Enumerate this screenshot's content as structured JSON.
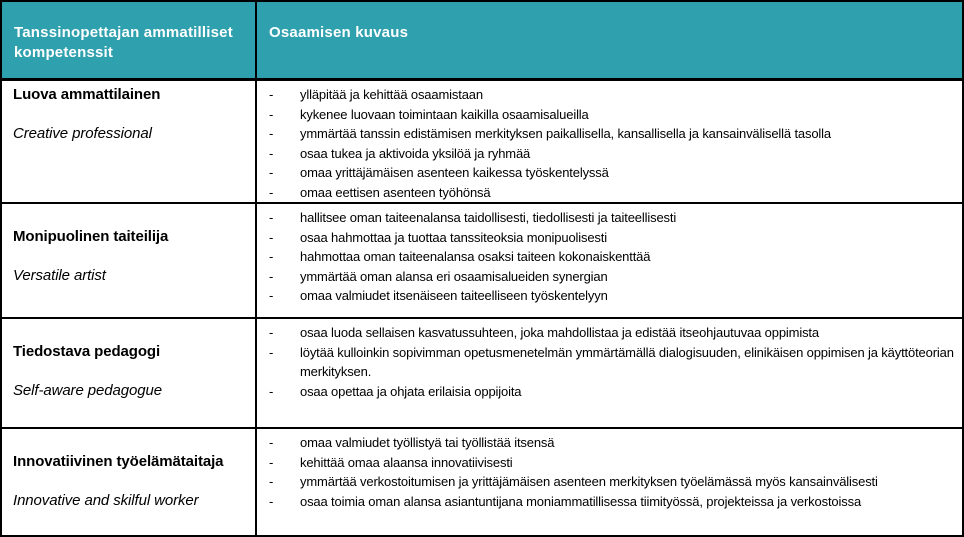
{
  "accent_color": "#2FA0AE",
  "border_color": "#000000",
  "list": {
    "marker": "-"
  },
  "header": {
    "col1": "Tanssinopettajan ammatilliset kompetenssit",
    "col2": "Osaamisen kuvaus"
  },
  "rows": [
    {
      "title_fi": "Luova ammattilainen",
      "title_en": "Creative professional",
      "bullets": [
        "ylläpitää ja kehittää osaamistaan",
        "kykenee luovaan toimintaan kaikilla osaamisalueilla",
        "ymmärtää tanssin edistämisen merkityksen paikallisella, kansallisella ja kansainvälisellä tasolla",
        "osaa tukea ja aktivoida yksilöä ja ryhmää",
        "omaa yrittäjämäisen asenteen kaikessa työskentelyssä",
        "omaa eettisen asenteen työhönsä"
      ]
    },
    {
      "title_fi": "Monipuolinen taiteilija",
      "title_en": "Versatile artist",
      "bullets": [
        "hallitsee oman taiteenalansa taidollisesti, tiedollisesti ja taiteellisesti",
        "osaa hahmottaa ja tuottaa tanssiteoksia monipuolisesti",
        "hahmottaa oman taiteenalansa osaksi taiteen kokonaiskenttää",
        "ymmärtää oman alansa eri osaamisalueiden synergian",
        "omaa valmiudet itsenäiseen taiteelliseen työskentelyyn"
      ]
    },
    {
      "title_fi": "Tiedostava pedagogi",
      "title_en": "Self-aware pedagogue",
      "bullets": [
        "osaa luoda sellaisen kasvatussuhteen, joka mahdollistaa ja edistää itseohjautuvaa oppimista",
        "löytää kulloinkin sopivimman opetusmenetelmän ymmärtämällä dialogisuuden, elinikäisen oppimisen ja käyttöteorian merkityksen.",
        "osaa opettaa ja ohjata erilaisia oppijoita"
      ]
    },
    {
      "title_fi": "Innovatiivinen työelämätaitaja",
      "title_en": "Innovative and skilful worker",
      "bullets": [
        "omaa valmiudet työllistyä tai työllistää itsensä",
        "kehittää omaa alaansa innovatiivisesti",
        "ymmärtää verkostoitumisen ja yrittäjämäisen asenteen merkityksen työelämässä myös kansainvälisesti",
        "osaa toimia oman alansa asiantuntijana moniammatillisessa tiimityössä, projekteissa ja verkostoissa"
      ]
    }
  ]
}
